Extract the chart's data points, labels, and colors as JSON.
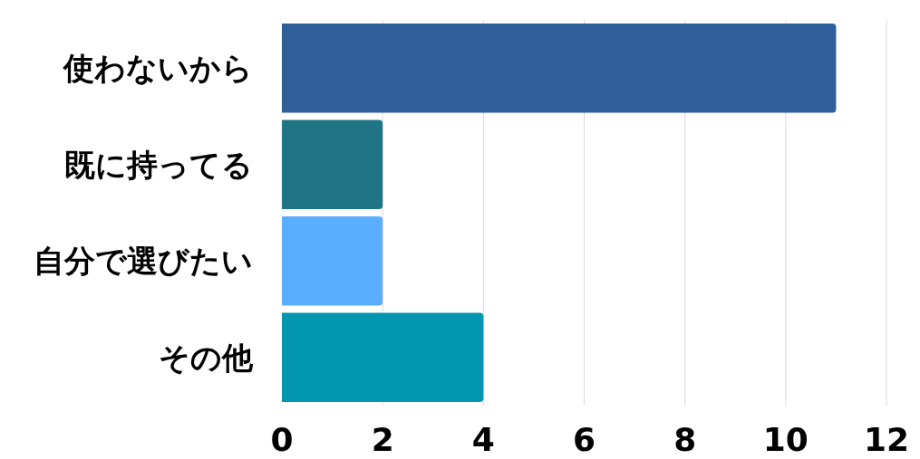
{
  "chart_data": {
    "type": "bar",
    "orientation": "horizontal",
    "categories": [
      "使わないから",
      "既に持ってる",
      "自分で選びたい",
      "その他"
    ],
    "values": [
      11,
      2,
      2,
      4
    ],
    "colors": [
      "#2e5f98",
      "#1f7585",
      "#5aaeff",
      "#0396b1"
    ],
    "xlim": [
      0,
      12
    ],
    "xticks": [
      0,
      2,
      4,
      6,
      8,
      10,
      12
    ],
    "grid": "x"
  }
}
